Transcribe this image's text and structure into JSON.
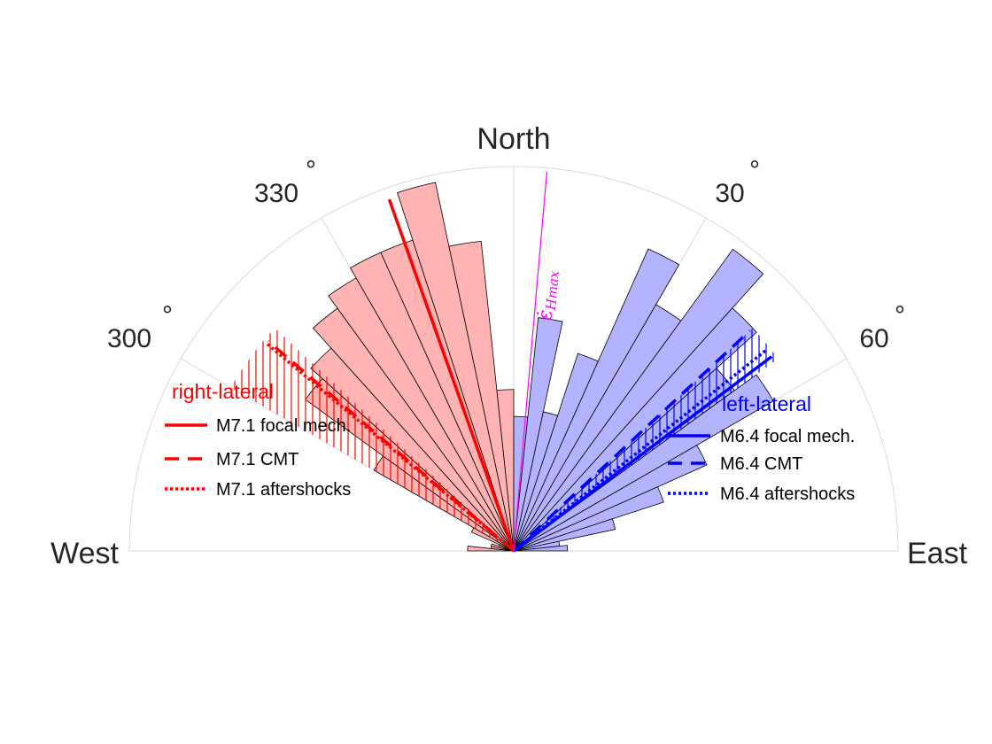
{
  "chart_data": {
    "type": "polar-histogram",
    "theta_range_deg": [
      -90,
      90
    ],
    "theta_zero": "North",
    "theta_direction": "clockwise",
    "direction_labels": {
      "north": "North",
      "east": "East",
      "west": "West"
    },
    "angle_ticks": [
      {
        "deg": -60,
        "label": "300"
      },
      {
        "deg": -30,
        "label": "330"
      },
      {
        "deg": 30,
        "label": "30"
      },
      {
        "deg": 60,
        "label": "60"
      }
    ],
    "degree_symbol": "°",
    "bin_width_deg": 6,
    "r_max": 1.0,
    "grid": true,
    "bins": [
      {
        "center": -87,
        "r": 0.12,
        "group": "right"
      },
      {
        "center": -81,
        "r": 0.06,
        "group": "right"
      },
      {
        "center": -75,
        "r": 0.06,
        "group": "right"
      },
      {
        "center": -69,
        "r": 0.04,
        "group": "right"
      },
      {
        "center": -63,
        "r": 0.12,
        "group": "right"
      },
      {
        "center": -57,
        "r": 0.42,
        "group": "right"
      },
      {
        "center": -51,
        "r": 0.67,
        "group": "right"
      },
      {
        "center": -45,
        "r": 0.71,
        "group": "right"
      },
      {
        "center": -39,
        "r": 0.78,
        "group": "right"
      },
      {
        "center": -33,
        "r": 0.82,
        "group": "right"
      },
      {
        "center": -27,
        "r": 0.85,
        "group": "right"
      },
      {
        "center": -21,
        "r": 0.85,
        "group": "right"
      },
      {
        "center": -15,
        "r": 0.98,
        "group": "right"
      },
      {
        "center": -9,
        "r": 0.81,
        "group": "right"
      },
      {
        "center": -3,
        "r": 0.42,
        "group": "right"
      },
      {
        "center": 3,
        "r": 0.35,
        "group": "left"
      },
      {
        "center": 9,
        "r": 0.61,
        "group": "left"
      },
      {
        "center": 15,
        "r": 0.37,
        "group": "left"
      },
      {
        "center": 21,
        "r": 0.54,
        "group": "left"
      },
      {
        "center": 27,
        "r": 0.86,
        "group": "left"
      },
      {
        "center": 33,
        "r": 0.74,
        "group": "left"
      },
      {
        "center": 39,
        "r": 0.97,
        "group": "left"
      },
      {
        "center": 45,
        "r": 0.85,
        "group": "left"
      },
      {
        "center": 51,
        "r": 0.71,
        "group": "left"
      },
      {
        "center": 57,
        "r": 0.78,
        "group": "left"
      },
      {
        "center": 63,
        "r": 0.55,
        "group": "left"
      },
      {
        "center": 69,
        "r": 0.41,
        "group": "left"
      },
      {
        "center": 75,
        "r": 0.27,
        "group": "left"
      },
      {
        "center": 81,
        "r": 0.12,
        "group": "left"
      },
      {
        "center": 87,
        "r": 0.14,
        "group": "left"
      }
    ],
    "hatched_sectors": [
      {
        "from_deg": -60,
        "to_deg": -47,
        "r": 0.85,
        "color": "#ff0000"
      },
      {
        "from_deg": 47,
        "to_deg": 54,
        "r": 0.85,
        "color": "#0000ff"
      }
    ],
    "strike_lines": [
      {
        "angle_deg": -19.5,
        "r": 0.97,
        "color": "#ff0000",
        "style": "solid"
      },
      {
        "angle_deg": -49.5,
        "r": 0.84,
        "color": "#ff0000",
        "style": "dashed"
      },
      {
        "angle_deg": -50.0,
        "r": 0.84,
        "color": "#ff0000",
        "style": "dotted"
      },
      {
        "angle_deg": 53.0,
        "r": 0.84,
        "color": "#0000ff",
        "style": "solid"
      },
      {
        "angle_deg": 47.0,
        "r": 0.84,
        "color": "#0000ff",
        "style": "dashed"
      },
      {
        "angle_deg": 51.5,
        "r": 0.84,
        "color": "#0000ff",
        "style": "dotted"
      }
    ],
    "strain_direction": {
      "angle_deg": 5.0,
      "r": 0.99,
      "color": "#ff00ff",
      "label": "ε̇",
      "label_sub": "Hmax"
    },
    "colors": {
      "right_fill": "#ffb3b3",
      "left_fill": "#b3b3ff",
      "right": "#ff0000",
      "left": "#0000ff",
      "grid": "#d9d9d9",
      "axis_text": "#262626"
    },
    "legends": [
      {
        "position": "left",
        "title": "right-lateral",
        "color": "#ff0000",
        "entries": [
          {
            "label": "M7.1 focal mech.",
            "style": "solid"
          },
          {
            "label": "M7.1 CMT",
            "style": "dashed"
          },
          {
            "label": "M7.1 aftershocks",
            "style": "dotted"
          }
        ]
      },
      {
        "position": "right",
        "title": "left-lateral",
        "color": "#0000ff",
        "entries": [
          {
            "label": "M6.4 focal mech.",
            "style": "solid"
          },
          {
            "label": "M6.4 CMT",
            "style": "dashed"
          },
          {
            "label": "M6.4 aftershocks",
            "style": "dotted"
          }
        ]
      }
    ]
  }
}
